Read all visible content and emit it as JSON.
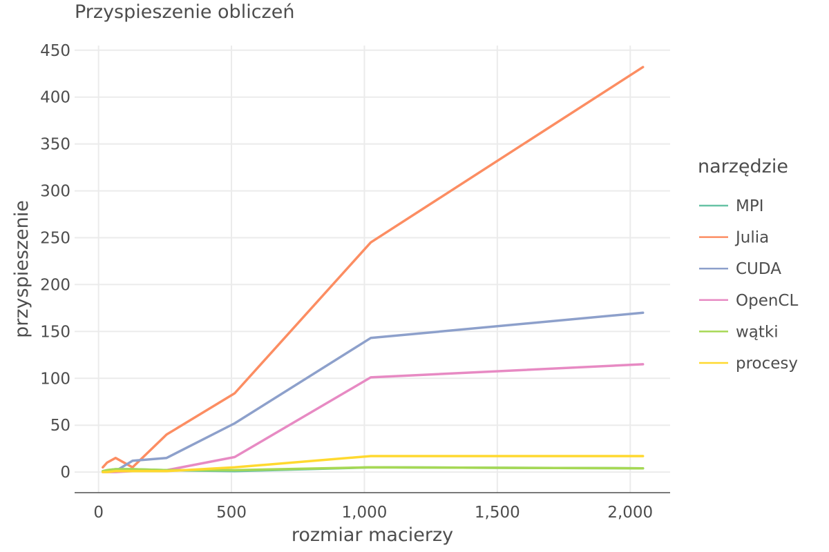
{
  "chart_data": {
    "type": "line",
    "title": "Przyspieszenie obliczeń",
    "xlabel": "rozmiar macierzy",
    "ylabel": "przyspieszenie",
    "xlim": [
      -90,
      2150
    ],
    "ylim": [
      -22,
      455
    ],
    "x_ticks": [
      0,
      500,
      1000,
      1500,
      2000
    ],
    "x_tick_labels": [
      "0",
      "500",
      "1,000",
      "1,500",
      "2,000"
    ],
    "y_ticks": [
      0,
      50,
      100,
      150,
      200,
      250,
      300,
      350,
      400,
      450
    ],
    "y_tick_labels": [
      "0",
      "50",
      "100",
      "150",
      "200",
      "250",
      "300",
      "350",
      "400",
      "450"
    ],
    "grid": true,
    "legend": {
      "title": "narzędzie",
      "position": "right"
    },
    "series": [
      {
        "name": "MPI",
        "color": "#66c2a5",
        "x": [
          16,
          32,
          64,
          128,
          256,
          512,
          1024,
          2048
        ],
        "y": [
          1,
          2,
          3,
          3,
          2,
          1,
          5,
          4
        ]
      },
      {
        "name": "Julia",
        "color": "#fc8d62",
        "x": [
          16,
          32,
          64,
          128,
          256,
          512,
          1024,
          2048
        ],
        "y": [
          5,
          10,
          15,
          5,
          40,
          84,
          245,
          432
        ]
      },
      {
        "name": "CUDA",
        "color": "#8da0cb",
        "x": [
          16,
          32,
          64,
          128,
          256,
          512,
          1024,
          2048
        ],
        "y": [
          0,
          0,
          1,
          12,
          15,
          52,
          143,
          170
        ]
      },
      {
        "name": "OpenCL",
        "color": "#e78ac3",
        "x": [
          16,
          32,
          64,
          128,
          256,
          512,
          1024,
          2048
        ],
        "y": [
          0,
          0,
          0,
          1,
          2,
          16,
          101,
          115
        ]
      },
      {
        "name": "wątki",
        "color": "#a6d854",
        "x": [
          16,
          32,
          64,
          128,
          256,
          512,
          1024,
          2048
        ],
        "y": [
          1,
          2,
          3,
          3,
          2,
          2,
          5,
          4
        ]
      },
      {
        "name": "procesy",
        "color": "#ffd92f",
        "x": [
          16,
          32,
          64,
          128,
          256,
          512,
          1024,
          2048
        ],
        "y": [
          0,
          0,
          1,
          1,
          1,
          5,
          17,
          17
        ]
      }
    ]
  }
}
